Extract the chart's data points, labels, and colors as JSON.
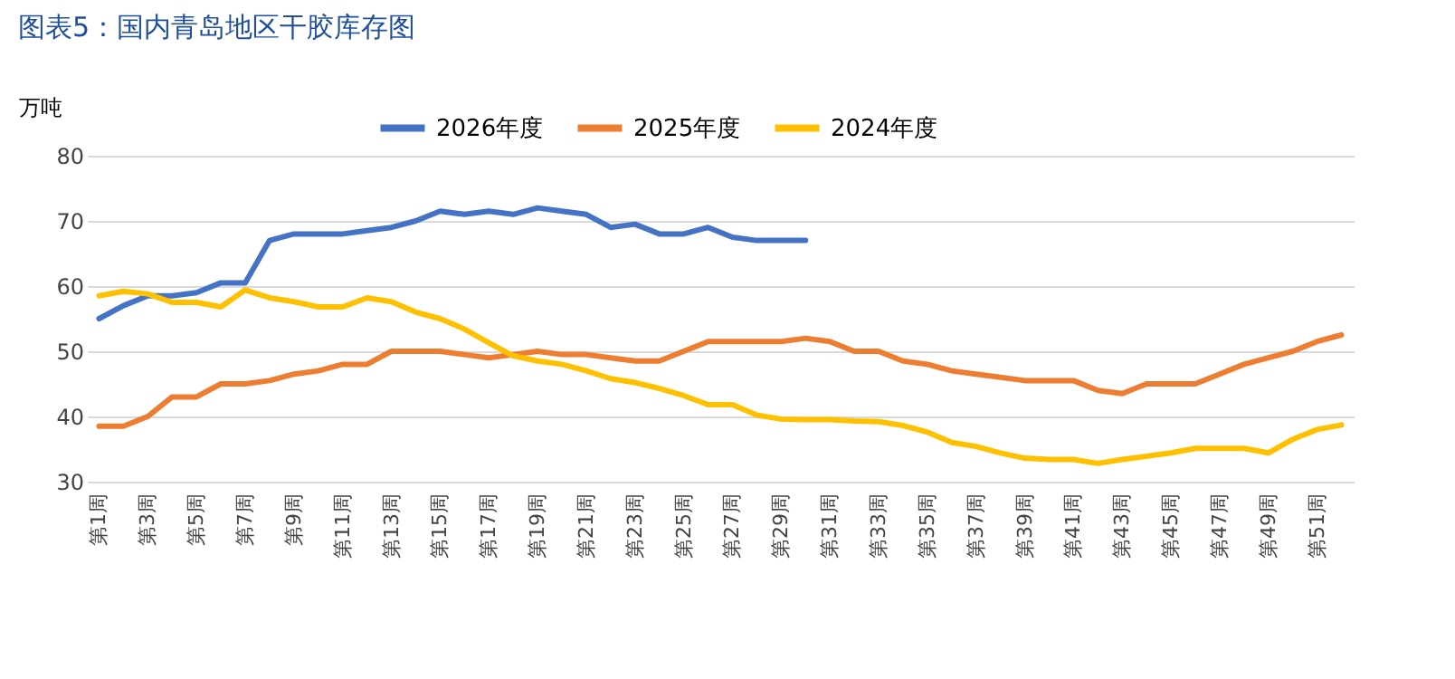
{
  "chart_data": {
    "type": "line",
    "title": "图表5：国内青岛地区干胶库存图",
    "ylabel": "万吨",
    "categories": [
      "第1周",
      null,
      "第3周",
      null,
      "第5周",
      null,
      "第7周",
      null,
      "第9周",
      null,
      "第11周",
      null,
      "第13周",
      null,
      "第15周",
      null,
      "第17周",
      null,
      "第19周",
      null,
      "第21周",
      null,
      "第23周",
      null,
      "第25周",
      null,
      "第27周",
      null,
      "第29周",
      null,
      "第31周",
      null,
      "第33周",
      null,
      "第35周",
      null,
      "第37周",
      null,
      "第39周",
      null,
      "第41周",
      null,
      "第43周",
      null,
      "第45周",
      null,
      "第47周",
      null,
      "第49周",
      null,
      "第51周",
      null
    ],
    "series": [
      {
        "name": "2026年度",
        "color": "#4472c4",
        "values": [
          55,
          57,
          58.5,
          58.5,
          59,
          60.5,
          60.5,
          67,
          68,
          68,
          68,
          68.5,
          69,
          70,
          71.5,
          71,
          71.5,
          71,
          72,
          71.5,
          71,
          69,
          69.5,
          68,
          68,
          69,
          67.5,
          67,
          67,
          67,
          null,
          null,
          null,
          null,
          null,
          null,
          null,
          null,
          null,
          null,
          null,
          null,
          null,
          null,
          null,
          null,
          null,
          null,
          null,
          null,
          null,
          null
        ]
      },
      {
        "name": "2025年度",
        "color": "#ed7d31",
        "values": [
          38.5,
          38.5,
          40,
          43,
          43,
          45,
          45,
          45.5,
          46.5,
          47,
          48,
          48,
          50,
          50,
          50,
          49.5,
          49,
          49.5,
          50,
          49.5,
          49.5,
          49,
          48.5,
          48.5,
          50,
          51.5,
          51.5,
          51.5,
          51.5,
          52,
          51.5,
          50,
          50,
          48.5,
          48,
          47,
          46.5,
          46,
          45.5,
          45.5,
          45.5,
          44,
          43.5,
          45,
          45,
          45,
          46.5,
          48,
          49,
          50,
          51.5,
          52.5
        ]
      },
      {
        "name": "2024年度",
        "color": "#ffc000",
        "values": [
          58.5,
          59.2,
          58.8,
          57.5,
          57.5,
          56.8,
          59.4,
          58.2,
          57.6,
          56.8,
          56.8,
          58.2,
          57.6,
          56,
          55,
          53.4,
          51.3,
          49.3,
          48.5,
          48,
          47,
          45.8,
          45.2,
          44.3,
          43.2,
          41.8,
          41.8,
          40.2,
          39.6,
          39.5,
          39.5,
          39.3,
          39.2,
          38.6,
          37.6,
          36,
          35.4,
          34.4,
          33.6,
          33.4,
          33.4,
          32.8,
          33.4,
          33.9,
          34.4,
          35.1,
          35.1,
          35.1,
          34.4,
          36.5,
          38,
          38.7
        ]
      }
    ],
    "ylim": [
      30,
      80
    ],
    "yticks": [
      30,
      40,
      50,
      60,
      70,
      80
    ],
    "grid": "y",
    "legend": "top",
    "marker": "none",
    "line_style": "solid"
  }
}
